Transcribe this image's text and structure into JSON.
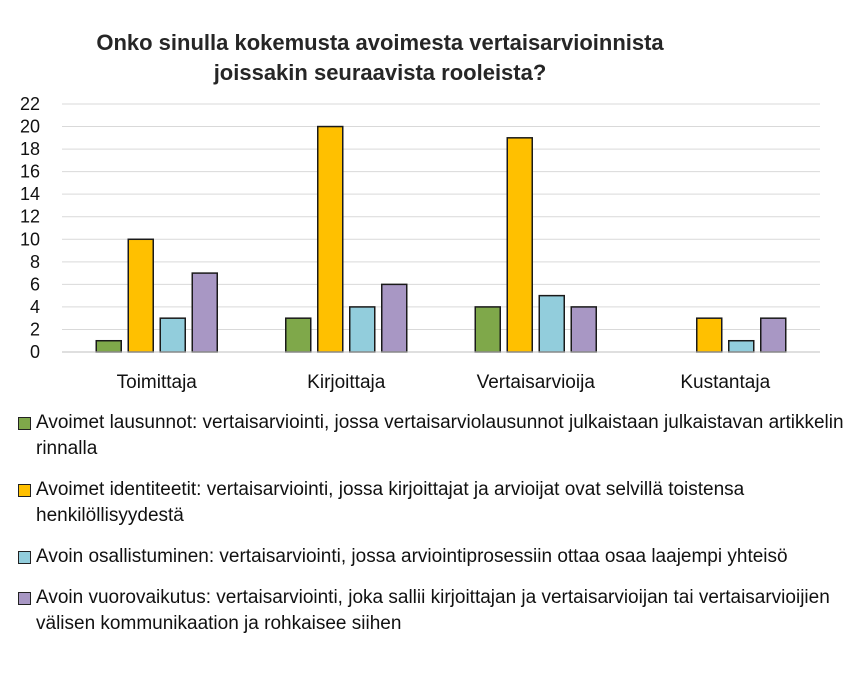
{
  "chart_data": {
    "type": "bar",
    "title": "Onko sinulla kokemusta avoimesta vertaisarvioinnista joissakin seuraavista rooleista?",
    "title_lines": [
      "Onko sinulla kokemusta avoimesta vertaisarvioinnista",
      "joissakin seuraavista rooleista?"
    ],
    "categories": [
      "Toimittaja",
      "Kirjoittaja",
      "Vertaisarvioija",
      "Kustantaja"
    ],
    "series": [
      {
        "name": "Avoimet lausunnot: vertaisarviointi, jossa vertaisarviolausunnot julkaistaan julkaistavan artikkelin rinnalla",
        "color": "#7fa84a",
        "values": [
          1,
          3,
          4,
          0
        ]
      },
      {
        "name": "Avoimet identiteetit: vertaisarviointi, jossa kirjoittajat ja arvioijat ovat selvillä toistensa henkilöllisyydestä",
        "color": "#ffc000",
        "values": [
          10,
          20,
          19,
          3
        ]
      },
      {
        "name": "Avoin osallistuminen: vertaisarviointi, jossa arviointiprosessiin ottaa osaa laajempi yhteisö",
        "color": "#92cddc",
        "values": [
          3,
          4,
          5,
          1
        ]
      },
      {
        "name": "Avoin vuorovaikutus: vertaisarviointi, joka sallii kirjoittajan ja vertaisarvioijan tai vertaisarvioijien välisen kommunikaation ja rohkaisee siihen",
        "color": "#a897c4",
        "values": [
          7,
          6,
          4,
          3
        ]
      }
    ],
    "ylim": [
      0,
      22
    ],
    "yticks": [
      0,
      2,
      4,
      6,
      8,
      10,
      12,
      14,
      16,
      18,
      20,
      22
    ],
    "grid": true,
    "legend_position": "bottom"
  }
}
